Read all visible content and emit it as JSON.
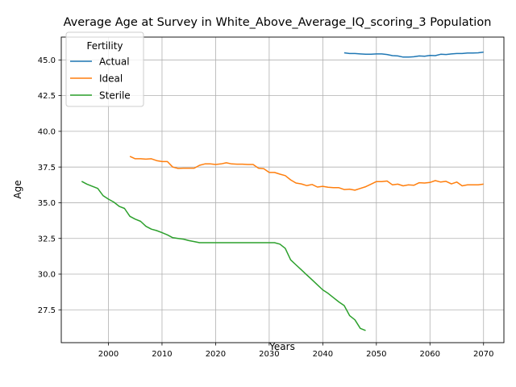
{
  "chart_data": {
    "type": "line",
    "title": "Average Age at Survey in White_Above_Average_IQ_scoring_3 Population",
    "xlabel": "Years",
    "ylabel": "Age",
    "xlim": [
      1991.2,
      2073.8
    ],
    "ylim": [
      25.2,
      46.6
    ],
    "x_ticks": [
      2000,
      2010,
      2020,
      2030,
      2040,
      2050,
      2060,
      2070
    ],
    "y_ticks": [
      27.5,
      30.0,
      32.5,
      35.0,
      37.5,
      40.0,
      42.5,
      45.0
    ],
    "x_tick_labels": [
      "2000",
      "2010",
      "2020",
      "2030",
      "2040",
      "2050",
      "2060",
      "2070"
    ],
    "y_tick_labels": [
      "27.5",
      "30.0",
      "32.5",
      "35.0",
      "37.5",
      "40.0",
      "42.5",
      "45.0"
    ],
    "grid": true,
    "legend": {
      "title": "Fertility",
      "placement": "top-left"
    },
    "series": [
      {
        "name": "Actual",
        "color": "#1f77b4",
        "x": [
          2044,
          2045,
          2046,
          2047,
          2048,
          2049,
          2050,
          2051,
          2052,
          2053,
          2054,
          2055,
          2056,
          2057,
          2058,
          2059,
          2060,
          2061,
          2062,
          2063,
          2064,
          2065,
          2066,
          2067,
          2068,
          2069,
          2070
        ],
        "y": [
          45.5,
          45.45,
          45.45,
          45.42,
          45.4,
          45.4,
          45.42,
          45.42,
          45.38,
          45.3,
          45.28,
          45.2,
          45.2,
          45.22,
          45.28,
          45.26,
          45.32,
          45.3,
          45.4,
          45.38,
          45.42,
          45.45,
          45.45,
          45.48,
          45.48,
          45.5,
          45.55
        ]
      },
      {
        "name": "Ideal",
        "color": "#ff7f0e",
        "x": [
          2004,
          2005,
          2006,
          2007,
          2008,
          2009,
          2010,
          2011,
          2012,
          2013,
          2014,
          2015,
          2016,
          2017,
          2018,
          2019,
          2020,
          2021,
          2022,
          2023,
          2024,
          2025,
          2026,
          2027,
          2028,
          2029,
          2030,
          2031,
          2032,
          2033,
          2034,
          2035,
          2036,
          2037,
          2038,
          2039,
          2040,
          2041,
          2042,
          2043,
          2044,
          2045,
          2046,
          2047,
          2048,
          2049,
          2050,
          2051,
          2052,
          2053,
          2054,
          2055,
          2056,
          2057,
          2058,
          2059,
          2060,
          2061,
          2062,
          2063,
          2064,
          2065,
          2066,
          2067,
          2068,
          2069,
          2070
        ],
        "y": [
          38.25,
          38.08,
          38.08,
          38.05,
          38.08,
          37.95,
          37.88,
          37.88,
          37.5,
          37.4,
          37.42,
          37.42,
          37.42,
          37.62,
          37.72,
          37.72,
          37.68,
          37.72,
          37.8,
          37.72,
          37.7,
          37.7,
          37.68,
          37.68,
          37.42,
          37.38,
          37.12,
          37.12,
          37.0,
          36.9,
          36.6,
          36.38,
          36.32,
          36.2,
          36.28,
          36.1,
          36.15,
          36.08,
          36.05,
          36.05,
          35.92,
          35.95,
          35.88,
          36.0,
          36.12,
          36.3,
          36.48,
          36.48,
          36.52,
          36.25,
          36.3,
          36.18,
          36.25,
          36.22,
          36.4,
          36.38,
          36.42,
          36.55,
          36.45,
          36.5,
          36.32,
          36.45,
          36.18,
          36.25,
          36.25,
          36.25,
          36.3
        ]
      },
      {
        "name": "Sterile",
        "color": "#2ca02c",
        "x": [
          1995,
          1996,
          1997,
          1998,
          1999,
          2000,
          2001,
          2002,
          2003,
          2004,
          2005,
          2006,
          2007,
          2008,
          2009,
          2010,
          2011,
          2012,
          2013,
          2014,
          2015,
          2016,
          2017,
          2018,
          2019,
          2020,
          2021,
          2022,
          2023,
          2024,
          2025,
          2026,
          2027,
          2028,
          2029,
          2030,
          2031,
          2032,
          2033,
          2034,
          2035,
          2036,
          2037,
          2038,
          2039,
          2040,
          2041,
          2042,
          2043,
          2044,
          2045,
          2046,
          2047,
          2048
        ],
        "y": [
          36.5,
          36.3,
          36.15,
          36.0,
          35.5,
          35.25,
          35.05,
          34.75,
          34.6,
          34.05,
          33.85,
          33.7,
          33.35,
          33.15,
          33.05,
          32.9,
          32.75,
          32.55,
          32.5,
          32.45,
          32.35,
          32.28,
          32.2,
          32.2,
          32.2,
          32.2,
          32.2,
          32.2,
          32.2,
          32.2,
          32.2,
          32.2,
          32.2,
          32.2,
          32.2,
          32.2,
          32.2,
          32.1,
          31.8,
          31.0,
          30.65,
          30.3,
          29.95,
          29.6,
          29.25,
          28.9,
          28.65,
          28.35,
          28.05,
          27.8,
          27.1,
          26.8,
          26.2,
          26.05
        ]
      }
    ]
  }
}
